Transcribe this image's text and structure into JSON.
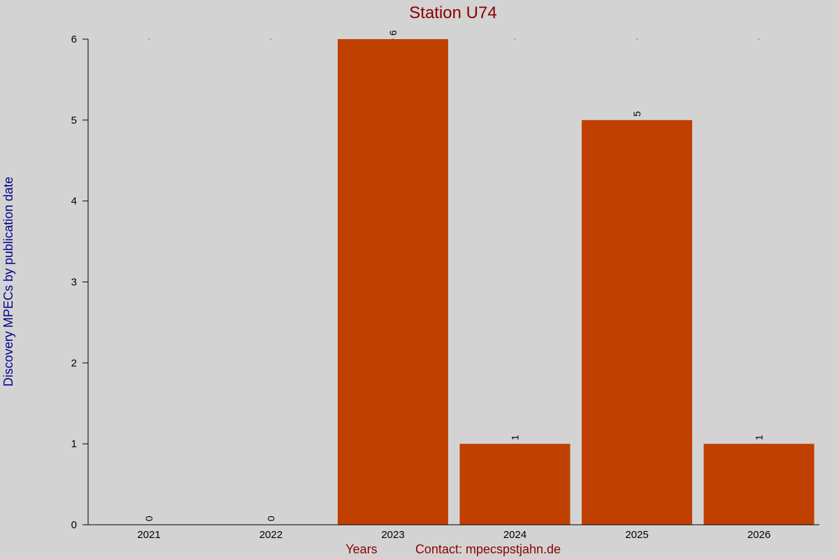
{
  "colors": {
    "background": "#d3d3d3",
    "bar": "#c04000",
    "title": "#8b0000",
    "ylabel": "#00008b",
    "xlabel": "#8b0000",
    "axis": "#000000"
  },
  "chart_data": {
    "type": "bar",
    "title": "Station U74",
    "xlabel": "Years",
    "ylabel": "Discovery MPECs by publication date",
    "footer": "Contact: mpecspstjahn.de",
    "categories": [
      "2021",
      "2022",
      "2023",
      "2024",
      "2025",
      "2026"
    ],
    "values": [
      0,
      0,
      6,
      1,
      5,
      1
    ],
    "data_labels": [
      "0",
      "0",
      "6",
      "1",
      "5",
      "1"
    ],
    "ylim": [
      0,
      6
    ],
    "yticks": [
      0,
      1,
      2,
      3,
      4,
      5,
      6
    ],
    "ytick_labels": [
      "0",
      "1",
      "2",
      "3",
      "4",
      "5",
      "6"
    ],
    "grid": false,
    "legend": "none"
  }
}
